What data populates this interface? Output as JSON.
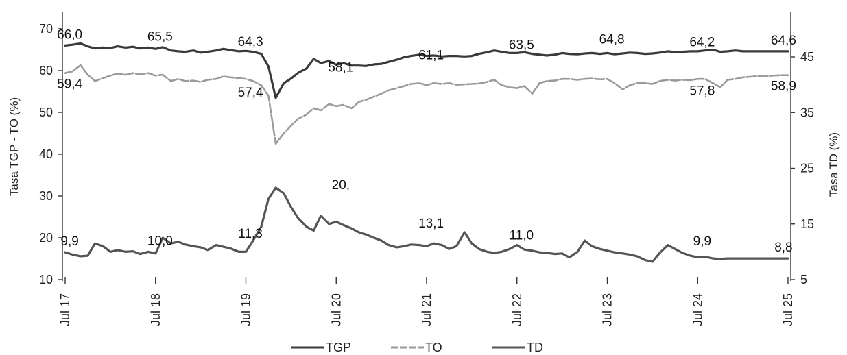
{
  "chart_data": {
    "type": "line",
    "title": "",
    "xlabel": "",
    "ylabel_left": "Tasa TGP - TO (%)",
    "ylabel_right": "Tasa TD (%)",
    "ylim_left": [
      10,
      70
    ],
    "ylim_right": [
      5,
      45
    ],
    "yticks_left": [
      "10",
      "20",
      "30",
      "40",
      "50",
      "60",
      "70"
    ],
    "yticks_right": [
      "5",
      "15",
      "25",
      "35",
      "45"
    ],
    "x_ticks": [
      "Jul 17",
      "Jul 18",
      "Jul 19",
      "Jul 20",
      "Jul 21",
      "Jul 22",
      "Jul 23",
      "Jul 24",
      "Jul 25"
    ],
    "grid": false,
    "legend_position": "bottom",
    "colors": {
      "TGP": "#3a3a3a",
      "TO": "#9a9a9a",
      "TD": "#555555"
    },
    "series": [
      {
        "name": "TGP",
        "axis": "left",
        "x": [
          2017.5,
          2017.58,
          2017.67,
          2017.75,
          2017.83,
          2017.92,
          2018.0,
          2018.08,
          2018.17,
          2018.25,
          2018.33,
          2018.42,
          2018.5,
          2018.58,
          2018.67,
          2018.75,
          2018.83,
          2018.92,
          2019.0,
          2019.08,
          2019.17,
          2019.25,
          2019.33,
          2019.42,
          2019.5,
          2019.58,
          2019.67,
          2019.75,
          2019.83,
          2019.92,
          2020.0,
          2020.08,
          2020.17,
          2020.25,
          2020.33,
          2020.42,
          2020.5,
          2020.58,
          2020.67,
          2020.75,
          2020.83,
          2020.92,
          2021.0,
          2021.08,
          2021.17,
          2021.25,
          2021.33,
          2021.42,
          2021.5,
          2021.58,
          2021.67,
          2021.75,
          2021.83,
          2021.92,
          2022.0,
          2022.08,
          2022.17,
          2022.25,
          2022.33,
          2022.42,
          2022.5,
          2022.58,
          2022.67,
          2022.75,
          2022.83,
          2022.92,
          2023.0,
          2023.08,
          2023.17,
          2023.25,
          2023.33,
          2023.42,
          2023.5,
          2023.58,
          2023.67,
          2023.75,
          2023.83,
          2023.92,
          2024.0,
          2024.08,
          2024.17,
          2024.25,
          2024.33,
          2024.42,
          2024.5,
          2024.58,
          2024.67,
          2024.75,
          2024.83,
          2024.92,
          2025.0,
          2025.08,
          2025.17,
          2025.25,
          2025.33,
          2025.42,
          2025.5
        ],
        "values": [
          66.0,
          66.2,
          66.5,
          65.8,
          65.3,
          65.5,
          65.4,
          65.8,
          65.5,
          65.7,
          65.3,
          65.5,
          65.2,
          65.6,
          64.8,
          64.6,
          64.5,
          64.8,
          64.3,
          64.5,
          64.8,
          65.2,
          64.9,
          64.6,
          64.7,
          64.5,
          64.0,
          61.0,
          53.5,
          57.0,
          58.1,
          59.5,
          60.5,
          62.8,
          61.8,
          62.3,
          61.4,
          61.8,
          61.2,
          61.2,
          61.1,
          61.5,
          61.6,
          62.1,
          62.6,
          63.2,
          63.5,
          63.8,
          63.5,
          63.6,
          63.4,
          63.5,
          63.5,
          63.4,
          63.5,
          64.0,
          64.4,
          64.8,
          64.5,
          64.2,
          64.2,
          64.4,
          64.0,
          63.8,
          63.6,
          63.8,
          64.2,
          64.0,
          63.9,
          64.1,
          64.2,
          64.0,
          64.2,
          63.9,
          64.1,
          64.3,
          64.2,
          64.0,
          64.1,
          64.3,
          64.6,
          64.4,
          64.5,
          64.6,
          64.6,
          64.8,
          65.0,
          64.5,
          64.6,
          64.8,
          64.6,
          64.6,
          64.6,
          64.6,
          64.6,
          64.6,
          64.6
        ],
        "labels": [
          {
            "x": 2017.55,
            "value": 66.0,
            "text": "66,0"
          },
          {
            "x": 2018.55,
            "value": 65.5,
            "text": "65,5"
          },
          {
            "x": 2019.55,
            "value": 64.3,
            "text": "64,3"
          },
          {
            "x": 2020.55,
            "value": 58.1,
            "text": "58,1"
          },
          {
            "x": 2021.55,
            "value": 61.1,
            "text": "61,1"
          },
          {
            "x": 2022.55,
            "value": 63.5,
            "text": "63,5"
          },
          {
            "x": 2023.55,
            "value": 64.8,
            "text": "64,8"
          },
          {
            "x": 2024.55,
            "value": 64.2,
            "text": "64,2"
          },
          {
            "x": 2025.45,
            "value": 64.6,
            "text": "64,6"
          }
        ]
      },
      {
        "name": "TO",
        "axis": "left",
        "x": [
          2017.5,
          2017.58,
          2017.67,
          2017.75,
          2017.83,
          2017.92,
          2018.0,
          2018.08,
          2018.17,
          2018.25,
          2018.33,
          2018.42,
          2018.5,
          2018.58,
          2018.67,
          2018.75,
          2018.83,
          2018.92,
          2019.0,
          2019.08,
          2019.17,
          2019.25,
          2019.33,
          2019.42,
          2019.5,
          2019.58,
          2019.67,
          2019.75,
          2019.83,
          2019.92,
          2020.0,
          2020.08,
          2020.17,
          2020.25,
          2020.33,
          2020.42,
          2020.5,
          2020.58,
          2020.67,
          2020.75,
          2020.83,
          2020.92,
          2021.0,
          2021.08,
          2021.17,
          2021.25,
          2021.33,
          2021.42,
          2021.5,
          2021.58,
          2021.67,
          2021.75,
          2021.83,
          2021.92,
          2022.0,
          2022.08,
          2022.17,
          2022.25,
          2022.33,
          2022.42,
          2022.5,
          2022.58,
          2022.67,
          2022.75,
          2022.83,
          2022.92,
          2023.0,
          2023.08,
          2023.17,
          2023.25,
          2023.33,
          2023.42,
          2023.5,
          2023.58,
          2023.67,
          2023.75,
          2023.83,
          2023.92,
          2024.0,
          2024.08,
          2024.17,
          2024.25,
          2024.33,
          2024.42,
          2024.5,
          2024.58,
          2024.67,
          2024.75,
          2024.83,
          2024.92,
          2025.0,
          2025.08,
          2025.17,
          2025.25,
          2025.33,
          2025.42,
          2025.5
        ],
        "values": [
          59.4,
          59.8,
          61.3,
          59.0,
          57.5,
          58.2,
          58.8,
          59.3,
          59.0,
          59.4,
          59.1,
          59.4,
          58.8,
          59.0,
          57.5,
          58.0,
          57.5,
          57.6,
          57.3,
          57.8,
          58.0,
          58.6,
          58.4,
          58.2,
          58.0,
          57.5,
          56.5,
          54.0,
          42.5,
          45.0,
          46.8,
          48.5,
          49.5,
          51.0,
          50.5,
          52.0,
          51.5,
          51.8,
          51.0,
          52.5,
          53.0,
          53.8,
          54.5,
          55.3,
          55.8,
          56.3,
          56.8,
          57.0,
          56.5,
          57.0,
          56.8,
          57.0,
          56.6,
          56.7,
          56.8,
          56.9,
          57.3,
          57.8,
          56.5,
          56.0,
          55.8,
          56.3,
          54.5,
          57.0,
          57.5,
          57.6,
          58.0,
          58.0,
          57.8,
          58.0,
          58.1,
          57.9,
          58.0,
          57.0,
          55.5,
          56.5,
          57.0,
          57.0,
          56.8,
          57.5,
          57.8,
          57.6,
          57.8,
          57.7,
          58.0,
          58.0,
          57.0,
          56.0,
          57.8,
          58.0,
          58.4,
          58.5,
          58.7,
          58.6,
          58.8,
          58.9,
          58.9
        ],
        "labels": [
          {
            "x": 2017.55,
            "value": 59.4,
            "text": "59,4"
          },
          {
            "x": 2019.55,
            "value": 57.4,
            "text": "57,4"
          },
          {
            "x": 2024.55,
            "value": 57.8,
            "text": "57,8"
          },
          {
            "x": 2025.45,
            "value": 58.9,
            "text": "58,9"
          }
        ]
      },
      {
        "name": "TD",
        "axis": "right",
        "x": [
          2017.5,
          2017.58,
          2017.67,
          2017.75,
          2017.83,
          2017.92,
          2018.0,
          2018.08,
          2018.17,
          2018.25,
          2018.33,
          2018.42,
          2018.5,
          2018.58,
          2018.67,
          2018.75,
          2018.83,
          2018.92,
          2019.0,
          2019.08,
          2019.17,
          2019.25,
          2019.33,
          2019.42,
          2019.5,
          2019.58,
          2019.67,
          2019.75,
          2019.83,
          2019.92,
          2020.0,
          2020.08,
          2020.17,
          2020.25,
          2020.33,
          2020.42,
          2020.5,
          2020.58,
          2020.67,
          2020.75,
          2020.83,
          2020.92,
          2021.0,
          2021.08,
          2021.17,
          2021.25,
          2021.33,
          2021.42,
          2021.5,
          2021.58,
          2021.67,
          2021.75,
          2021.83,
          2021.92,
          2022.0,
          2022.08,
          2022.17,
          2022.25,
          2022.33,
          2022.42,
          2022.5,
          2022.58,
          2022.67,
          2022.75,
          2022.83,
          2022.92,
          2023.0,
          2023.08,
          2023.17,
          2023.25,
          2023.33,
          2023.42,
          2023.5,
          2023.58,
          2023.67,
          2023.75,
          2023.83,
          2023.92,
          2024.0,
          2024.08,
          2024.17,
          2024.25,
          2024.33,
          2024.42,
          2024.5,
          2024.58,
          2024.67,
          2024.75,
          2024.83,
          2024.92,
          2025.0,
          2025.08,
          2025.17,
          2025.25,
          2025.33,
          2025.42,
          2025.5
        ],
        "values": [
          9.9,
          9.5,
          9.2,
          9.3,
          11.5,
          11.0,
          10.0,
          10.3,
          10.0,
          10.1,
          9.6,
          10.0,
          9.7,
          12.5,
          11.5,
          11.8,
          11.3,
          11.0,
          10.8,
          10.3,
          11.2,
          10.9,
          10.6,
          10.0,
          10.0,
          12.0,
          14.5,
          19.5,
          21.5,
          20.5,
          18.0,
          16.0,
          14.5,
          13.8,
          16.5,
          15.0,
          15.4,
          14.8,
          14.2,
          13.5,
          13.1,
          12.5,
          12.0,
          11.2,
          10.8,
          11.0,
          11.3,
          11.2,
          11.0,
          11.5,
          11.2,
          10.5,
          11.0,
          13.5,
          11.5,
          10.5,
          10.0,
          9.8,
          10.0,
          10.5,
          11.2,
          10.4,
          10.2,
          9.9,
          9.8,
          9.6,
          9.7,
          9.0,
          10.0,
          12.0,
          11.0,
          10.5,
          10.2,
          9.9,
          9.7,
          9.5,
          9.2,
          8.5,
          8.2,
          9.8,
          11.2,
          10.5,
          9.8,
          9.3,
          9.0,
          9.1,
          8.8,
          8.7,
          8.8,
          8.8,
          8.8,
          8.8,
          8.8,
          8.8,
          8.8,
          8.8,
          8.8
        ],
        "labels": [
          {
            "x": 2017.55,
            "value": 9.9,
            "text": "9,9"
          },
          {
            "x": 2018.55,
            "value": 10.0,
            "text": "10,0"
          },
          {
            "x": 2019.55,
            "value": 11.3,
            "text": "11,3"
          },
          {
            "x": 2020.55,
            "value": 20.0,
            "text": "20,"
          },
          {
            "x": 2021.55,
            "value": 13.1,
            "text": "13,1"
          },
          {
            "x": 2022.55,
            "value": 11.0,
            "text": "11,0"
          },
          {
            "x": 2024.55,
            "value": 9.9,
            "text": "9,9"
          },
          {
            "x": 2025.45,
            "value": 8.8,
            "text": "8,8"
          }
        ]
      }
    ]
  }
}
